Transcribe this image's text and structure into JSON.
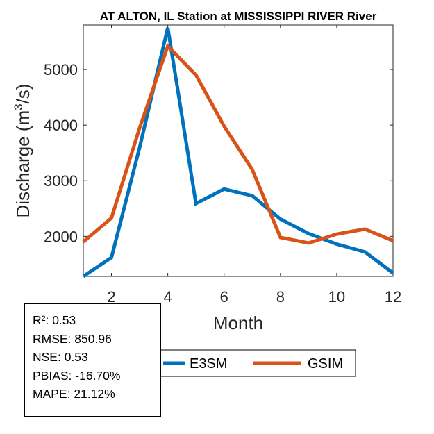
{
  "chart_data": {
    "type": "line",
    "title": "AT ALTON, IL  Station at  MISSISSIPPI RIVER  River",
    "xlabel": "Month",
    "ylabel_main": "Discharge (m",
    "ylabel_sup": "3",
    "ylabel_tail": "/s)",
    "xlim": [
      1,
      12
    ],
    "ylim": [
      1280,
      5800
    ],
    "xticks": [
      2,
      4,
      6,
      8,
      10,
      12
    ],
    "yticks": [
      2000,
      3000,
      4000,
      5000
    ],
    "x": [
      1,
      2,
      3,
      4,
      5,
      6,
      7,
      8,
      9,
      10,
      11,
      12
    ],
    "series": [
      {
        "name": "E3SM",
        "color": "#0072BD",
        "values": [
          1280,
          1620,
          3600,
          5750,
          2590,
          2850,
          2730,
          2310,
          2050,
          1860,
          1720,
          1340
        ]
      },
      {
        "name": "GSIM",
        "color": "#D95319",
        "values": [
          1900,
          2330,
          3950,
          5420,
          4900,
          3980,
          3200,
          1980,
          1880,
          2040,
          2130,
          1920
        ]
      }
    ],
    "legend_position": "bottom"
  },
  "stats": {
    "r2": "R²: 0.53",
    "rmse": "RMSE: 850.96",
    "nse": "NSE: 0.53",
    "pbias": "PBIAS: -16.70%",
    "mape": "MAPE: 21.12%"
  }
}
